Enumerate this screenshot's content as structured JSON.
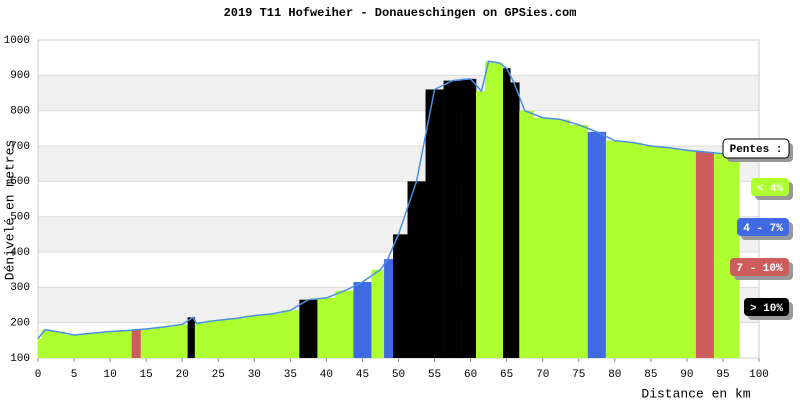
{
  "chart_data": {
    "type": "area",
    "title": "2019 T11 Hofweiher - Donaueschingen on GPSies.com",
    "xlabel": "Distance en km",
    "ylabel": "Dénivelé en metres",
    "x": [
      0,
      1,
      2.5,
      5,
      7.5,
      10,
      12.5,
      13.5,
      15,
      17.5,
      20,
      21.5,
      22,
      25,
      27.5,
      30,
      32.5,
      35,
      37.5,
      40,
      42.5,
      45,
      47.5,
      48.5,
      50,
      52.5,
      55,
      57.5,
      60,
      61.5,
      62.5,
      64,
      65,
      66,
      67.5,
      70,
      72.5,
      75,
      77.5,
      80,
      82.5,
      85,
      87.5,
      90,
      92.5,
      95,
      97
    ],
    "series": [
      {
        "color": "#4a90e2",
        "values": [
          155,
          180,
          175,
          165,
          170,
          175,
          178,
          180,
          182,
          188,
          195,
          215,
          198,
          207,
          212,
          220,
          225,
          235,
          265,
          270,
          290,
          315,
          350,
          380,
          450,
          600,
          860,
          885,
          890,
          855,
          940,
          935,
          920,
          880,
          800,
          780,
          775,
          760,
          740,
          715,
          710,
          700,
          695,
          688,
          683,
          678,
          670
        ],
        "colors": [
          "#adff2f",
          "#adff2f",
          "#adff2f",
          "#adff2f",
          "#adff2f",
          "#adff2f",
          "#adff2f",
          "#cd5c5c",
          "#adff2f",
          "#adff2f",
          "#adff2f",
          "#000000",
          "#adff2f",
          "#adff2f",
          "#adff2f",
          "#adff2f",
          "#adff2f",
          "#adff2f",
          "#000000",
          "#adff2f",
          "#adff2f",
          "#4169e1",
          "#adff2f",
          "#4169e1",
          "#000000",
          "#000000",
          "#000000",
          "#000000",
          "#000000",
          "#adff2f",
          "#adff2f",
          "#adff2f",
          "#000000",
          "#000000",
          "#adff2f",
          "#adff2f",
          "#adff2f",
          "#adff2f",
          "#4169e1",
          "#adff2f",
          "#adff2f",
          "#adff2f",
          "#adff2f",
          "#adff2f",
          "#cd5c5c",
          "#adff2f",
          "#adff2f"
        ]
      }
    ],
    "xlim": [
      0,
      100
    ],
    "ylim": [
      100,
      1000
    ],
    "xticks": [
      0,
      5,
      10,
      15,
      20,
      25,
      30,
      35,
      40,
      45,
      50,
      55,
      60,
      65,
      70,
      75,
      80,
      85,
      90,
      95,
      100
    ],
    "yticks": [
      100,
      200,
      300,
      400,
      500,
      600,
      700,
      800,
      900,
      1000
    ],
    "legend": {
      "title": "Pentes :",
      "items": [
        {
          "label": "< 4%",
          "color": "#adff2f"
        },
        {
          "label": "4 - 7%",
          "color": "#4169e1"
        },
        {
          "label": "7 - 10%",
          "color": "#cd5c5c"
        },
        {
          "label": "> 10%",
          "color": "#000000"
        }
      ]
    }
  }
}
